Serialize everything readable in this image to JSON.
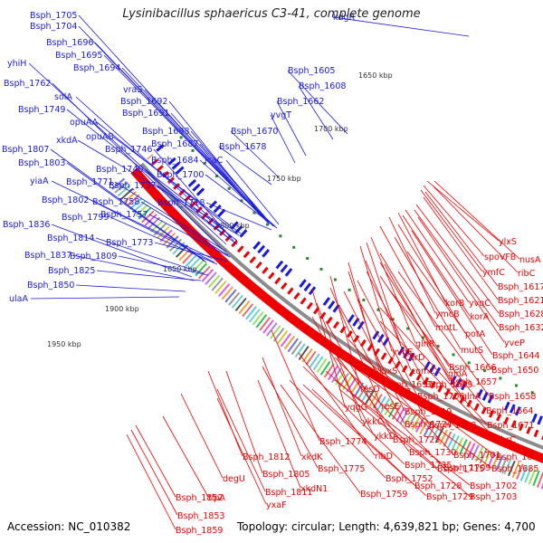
{
  "title": "Lysinibacillus sphaericus C3-41, complete genome",
  "accession_label": "Accession: NC_010382",
  "summary_label": "Topology: circular; Length: 4,639,821 bp; Genes: 4,700",
  "colors": {
    "plus_strand": "#1a1adf",
    "minus_strand": "#ee0000",
    "backbone": "#8c8c8c",
    "tick_dots": "#2a8a2a"
  },
  "kbp_ticks": [
    {
      "label": "1650 kbp"
    },
    {
      "label": "1700 kbp"
    },
    {
      "label": "1750 kbp"
    },
    {
      "label": "1800 kbp"
    },
    {
      "label": "1850 kbp"
    },
    {
      "label": "1900 kbp"
    },
    {
      "label": "1950 kbp"
    }
  ],
  "blue_labels": [
    "Bsph_1705",
    "Bsph_1704",
    "Bsph_1696",
    "Bsph_1695",
    "Bsph_1694",
    "yhiH",
    "Bsph_1762",
    "vraS",
    "Bsph_1692",
    "solA",
    "Bsph_1749",
    "Bsph_1691",
    "opuAA",
    "xkdA",
    "opuAB",
    "Bsph_1688",
    "Bsph_1746",
    "Bsph_1687",
    "Bsph_1807",
    "Bsph_1803",
    "Bsph_1740",
    "Bsph_1684",
    "icaC",
    "Bsph_1700",
    "yiaA",
    "Bsph_1771",
    "Bsph_1737",
    "Bsph_1802",
    "Bsph_1758",
    "Bsph_1718",
    "Bsph_1799",
    "Bsph_1757",
    "Bsph_1836",
    "Bsph_1814",
    "Bsph_1773",
    "Bsph_1837",
    "Bsph_1809",
    "Bsph_1825",
    "Bsph_1850",
    "ulaA",
    "kdgR",
    "Bsph_1605",
    "Bsph_1608",
    "Bsph_1662",
    "yvgT",
    "Bsph_1670",
    "Bsph_1678"
  ],
  "red_labels": [
    "ylxS",
    "spoVFB",
    "nusA",
    "ribC",
    "ymfC",
    "Bsph_1617",
    "Bsph_1621",
    "korB",
    "yvqC",
    "ymcB",
    "korA",
    "Bsph_1628",
    "Bsph_1632",
    "mutL",
    "potA",
    "glnR",
    "yveP",
    "cbrD",
    "mutS",
    "yvdE",
    "Bsph_1644",
    "Bsph_1666",
    "luxS",
    "comC",
    "glnA",
    "Bsph_1650",
    "Bsph_1657",
    "resD",
    "Bsph_1697",
    "Bsph_1689",
    "Bsph_1706",
    "glnA",
    "Bsph_1658",
    "yqgG",
    "resE",
    "Bsph_1719",
    "Bsph_1698",
    "Bsph_1664",
    "ykkC",
    "Bsph_1724",
    "Bsph_1671",
    "ykkD",
    "Bsph_1725",
    "cbrC",
    "Bsph_1774",
    "Bsph_1730",
    "Bsph_1701",
    "Bsph_1812",
    "xkdK",
    "ribD",
    "Bsph_1709",
    "Bsph_1680",
    "Bsph_1805",
    "Bsph_1775",
    "Bsph_1735",
    "Bsph_1715",
    "Bsph_1685",
    "degU",
    "Bsph_1752",
    "Bsph_1728",
    "Bsph_1702",
    "Bsph_1811",
    "xkdN1",
    "Bsph_1759",
    "Bsph_1729",
    "Bsph_1703",
    "Bsph_1852",
    "tlpA",
    "yxaF",
    "Bsph_1853",
    "Bsph_1859"
  ]
}
